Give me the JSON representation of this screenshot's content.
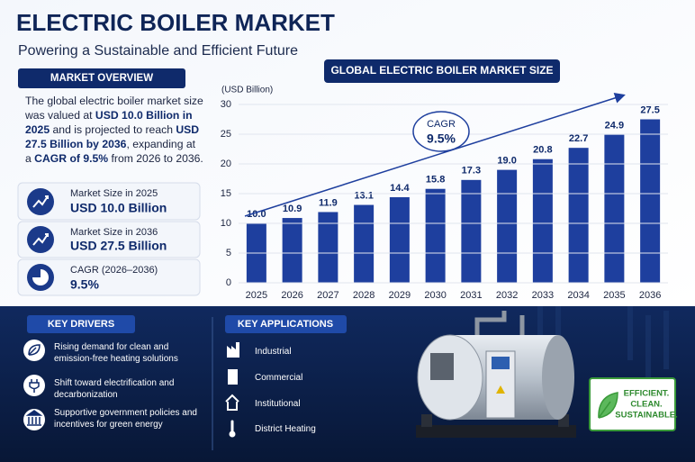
{
  "header": {
    "title": "ELECTRIC BOILER MARKET",
    "subtitle": "Powering a Sustainable and Efficient Future"
  },
  "overview": {
    "heading": "MARKET OVERVIEW",
    "paragraph": [
      {
        "text": "The global electric boiler market size was valued at ",
        "bold": false
      },
      {
        "text": "USD 10.0 Billion in 2025",
        "bold": true
      },
      {
        "text": " and is projected to reach ",
        "bold": false
      },
      {
        "text": "USD 27.5 Billion by 2036",
        "bold": true
      },
      {
        "text": ", expanding at a ",
        "bold": false
      },
      {
        "text": "CAGR of 9.5%",
        "bold": true
      },
      {
        "text": " from 2026 to 2036.",
        "bold": false
      }
    ],
    "cards": [
      {
        "label": "Market Size in 2025",
        "value": "USD 10.0 Billion"
      },
      {
        "label": "Market Size in 2036",
        "value": "USD 27.5 Billion"
      },
      {
        "label": "CAGR (2026–2036)",
        "value": "9.5%"
      }
    ]
  },
  "chart_data": {
    "type": "bar",
    "title": "GLOBAL ELECTRIC BOILER MARKET SIZE",
    "y_label": "(USD Billion)",
    "categories": [
      "2025",
      "2026",
      "2027",
      "2028",
      "2029",
      "2030",
      "2031",
      "2032",
      "2033",
      "2034",
      "2035",
      "2036"
    ],
    "values": [
      10,
      10.9,
      11.9,
      13.1,
      14.4,
      15.8,
      17.3,
      19,
      20.8,
      22.7,
      24.9,
      27.5
    ],
    "value_labels": [
      "10.0",
      "10.9",
      "11.9",
      "13.1",
      "14.4",
      "15.8",
      "17.3",
      "19.0",
      "20.8",
      "22.7",
      "24.9",
      "27.5"
    ],
    "color": "#1e3f9e",
    "ylim": [
      0,
      30
    ],
    "yticks": [
      0,
      5,
      10,
      15,
      20,
      25,
      30
    ],
    "grid": true,
    "annotations": [
      "CAGR",
      "9.5%"
    ]
  },
  "drivers": {
    "heading": "KEY DRIVERS",
    "items": [
      "Rising demand for clean and emission-free heating solutions",
      "Shift toward electrification and decarbonization",
      "Supportive government policies and incentives for green energy"
    ]
  },
  "applications": {
    "heading": "KEY APPLICATIONS",
    "items": [
      "Industrial",
      "Commercial",
      "Institutional",
      "District Heating"
    ]
  },
  "badge": [
    "EFFICIENT.",
    "CLEAN.",
    "SUSTAINABLE."
  ]
}
